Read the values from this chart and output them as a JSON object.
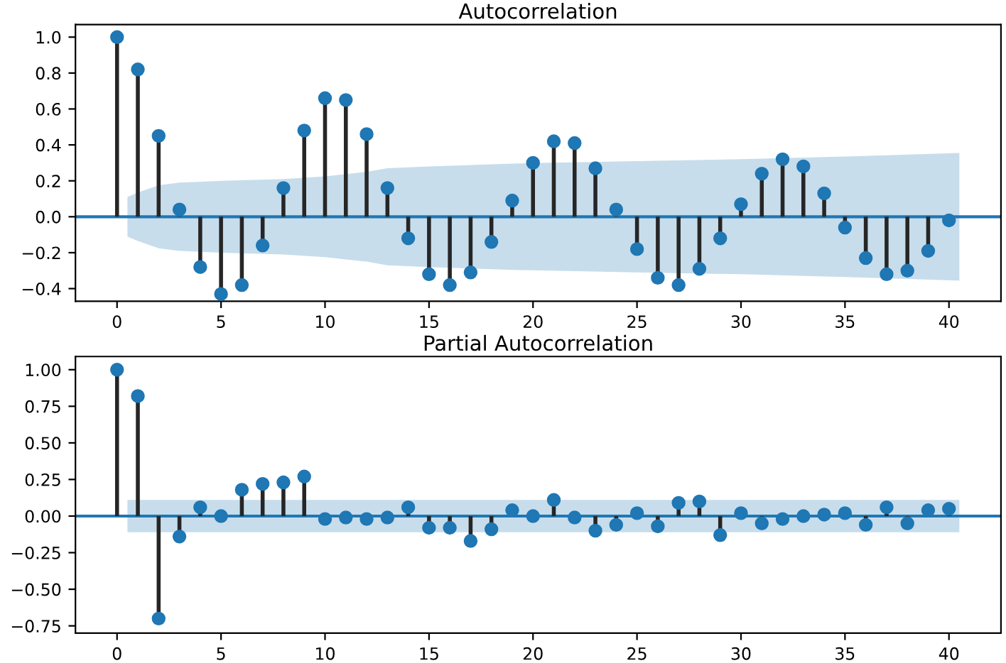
{
  "chart_data": [
    {
      "type": "lollipop",
      "title": "Autocorrelation",
      "marker": "circle",
      "grid": false,
      "xlim": [
        -2,
        42.5
      ],
      "xticks": [
        0,
        5,
        10,
        15,
        20,
        25,
        30,
        35,
        40
      ],
      "ylim": [
        -0.47,
        1.07
      ],
      "yticks": [
        {
          "value": -0.4,
          "label": "−0.4"
        },
        {
          "value": -0.2,
          "label": "−0.2"
        },
        {
          "value": 0,
          "label": "0.0"
        },
        {
          "value": 0.2,
          "label": "0.2"
        },
        {
          "value": 0.4,
          "label": "0.4"
        },
        {
          "value": 0.6,
          "label": "0.6"
        },
        {
          "value": 0.8,
          "label": "0.8"
        },
        {
          "value": 1,
          "label": "1.0"
        }
      ],
      "series": [
        {
          "type": "line",
          "marker": "none",
          "color": "#1f77b4",
          "x": [
            -2,
            0.5,
            1,
            2,
            3,
            5,
            8,
            10,
            12,
            13,
            15,
            19,
            25,
            30,
            35,
            40.5,
            42.5
          ],
          "values": [
            0,
            0,
            0,
            0,
            0,
            0,
            0,
            0,
            0,
            0,
            0,
            0,
            0,
            0,
            0,
            0,
            0
          ],
          "lower": [
            null,
            -0.11,
            -0.135,
            -0.175,
            -0.19,
            -0.2,
            -0.21,
            -0.225,
            -0.25,
            -0.27,
            -0.28,
            -0.296,
            -0.31,
            -0.32,
            -0.335,
            -0.355,
            null
          ],
          "upper": [
            null,
            0.11,
            0.135,
            0.175,
            0.19,
            0.2,
            0.21,
            0.225,
            0.25,
            0.27,
            0.28,
            0.296,
            0.31,
            0.32,
            0.335,
            0.355,
            null
          ]
        },
        {
          "color": "#1f77b4",
          "x": [
            0,
            1,
            2,
            3,
            4,
            5,
            6,
            7,
            8,
            9,
            10,
            11,
            12,
            13,
            14,
            15,
            16,
            17,
            18,
            19,
            20,
            21,
            22,
            23,
            24,
            25,
            26,
            27,
            28,
            29,
            30,
            31,
            32,
            33,
            34,
            35,
            36,
            37,
            38,
            39,
            40
          ],
          "values": [
            1.0,
            0.82,
            0.45,
            0.04,
            -0.28,
            -0.43,
            -0.38,
            -0.16,
            0.16,
            0.48,
            0.66,
            0.65,
            0.46,
            0.16,
            -0.12,
            -0.32,
            -0.38,
            -0.31,
            -0.14,
            0.09,
            0.3,
            0.42,
            0.41,
            0.27,
            0.04,
            -0.18,
            -0.34,
            -0.38,
            -0.29,
            -0.12,
            0.07,
            0.24,
            0.32,
            0.28,
            0.13,
            -0.06,
            -0.23,
            -0.32,
            -0.3,
            -0.19,
            -0.02
          ]
        }
      ]
    },
    {
      "type": "lollipop",
      "title": "Partial Autocorrelation",
      "marker": "circle",
      "grid": false,
      "xlim": [
        -2,
        42.5
      ],
      "xticks": [
        0,
        5,
        10,
        15,
        20,
        25,
        30,
        35,
        40
      ],
      "ylim": [
        -0.8,
        1.09
      ],
      "yticks": [
        {
          "value": -0.75,
          "label": "−0.75"
        },
        {
          "value": -0.5,
          "label": "−0.50"
        },
        {
          "value": -0.25,
          "label": "−0.25"
        },
        {
          "value": 0,
          "label": "0.00"
        },
        {
          "value": 0.25,
          "label": "0.25"
        },
        {
          "value": 0.5,
          "label": "0.50"
        },
        {
          "value": 0.75,
          "label": "0.75"
        },
        {
          "value": 1,
          "label": "1.00"
        }
      ],
      "series": [
        {
          "type": "line",
          "marker": "none",
          "color": "#1f77b4",
          "x": [
            -2,
            0.5,
            40.5,
            42.5
          ],
          "values": [
            0,
            0,
            0,
            0
          ],
          "lower": [
            null,
            -0.11,
            -0.11,
            null
          ],
          "upper": [
            null,
            0.11,
            0.11,
            null
          ]
        },
        {
          "color": "#1f77b4",
          "x": [
            0,
            1,
            2,
            3,
            4,
            5,
            6,
            7,
            8,
            9,
            10,
            11,
            12,
            13,
            14,
            15,
            16,
            17,
            18,
            19,
            20,
            21,
            22,
            23,
            24,
            25,
            26,
            27,
            28,
            29,
            30,
            31,
            32,
            33,
            34,
            35,
            36,
            37,
            38,
            39,
            40
          ],
          "values": [
            1.0,
            0.82,
            -0.7,
            -0.14,
            0.06,
            0.0,
            0.18,
            0.22,
            0.23,
            0.27,
            -0.02,
            -0.01,
            -0.02,
            -0.01,
            0.06,
            -0.08,
            -0.08,
            -0.17,
            -0.09,
            0.04,
            0.0,
            0.11,
            -0.01,
            -0.1,
            -0.06,
            0.02,
            -0.07,
            0.09,
            0.1,
            -0.13,
            0.02,
            -0.05,
            -0.02,
            0.0,
            0.01,
            0.02,
            -0.06,
            0.06,
            -0.05,
            0.04,
            0.05
          ]
        }
      ]
    }
  ]
}
